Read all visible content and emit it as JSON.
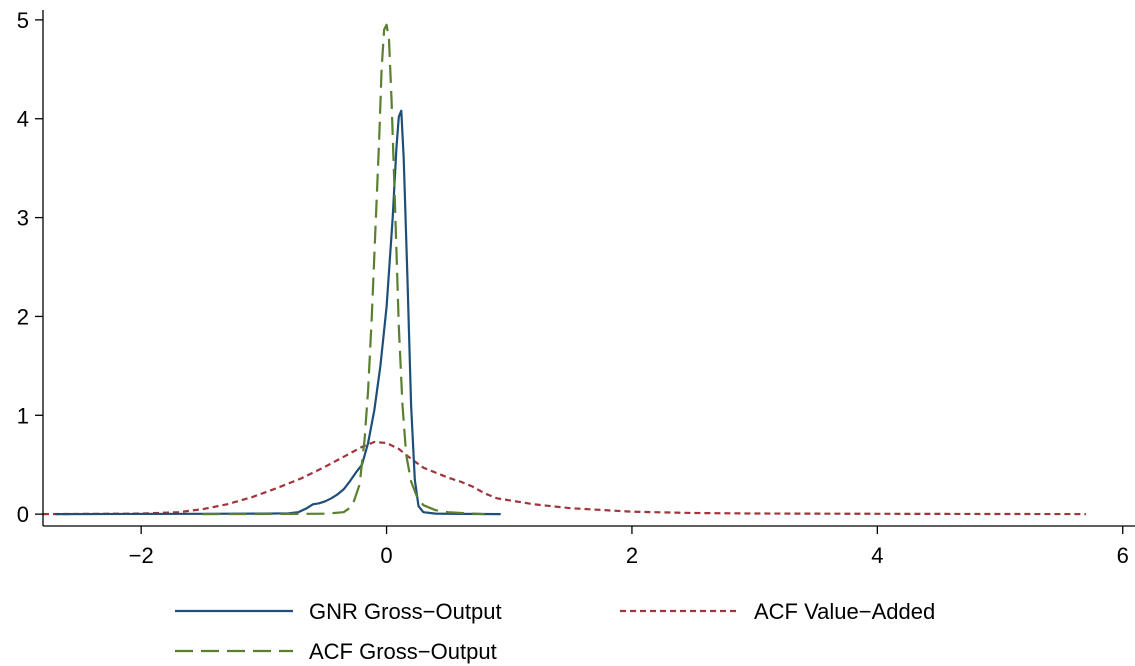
{
  "chart_data": {
    "type": "line",
    "title": "",
    "xlabel": "",
    "ylabel": "",
    "xlim": [
      -2.8,
      6.1
    ],
    "ylim": [
      -0.12,
      5.1
    ],
    "xticks": [
      -2,
      0,
      2,
      4,
      6
    ],
    "yticks": [
      0,
      1,
      2,
      3,
      4,
      5
    ],
    "xtick_labels": [
      "−2",
      "0",
      "2",
      "4",
      "6"
    ],
    "ytick_labels": [
      "0",
      "1",
      "2",
      "3",
      "4",
      "5"
    ],
    "grid": false,
    "legend_position": "bottom",
    "series": [
      {
        "name": "GNR Gross−Output",
        "color": "#1f4e79",
        "dash": "solid",
        "points": [
          [
            -2.7,
            0
          ],
          [
            -1.5,
            0.003
          ],
          [
            -1.0,
            0.005
          ],
          [
            -0.8,
            0.008
          ],
          [
            -0.72,
            0.02
          ],
          [
            -0.65,
            0.06
          ],
          [
            -0.6,
            0.1
          ],
          [
            -0.55,
            0.11
          ],
          [
            -0.5,
            0.13
          ],
          [
            -0.45,
            0.16
          ],
          [
            -0.4,
            0.2
          ],
          [
            -0.35,
            0.25
          ],
          [
            -0.3,
            0.33
          ],
          [
            -0.25,
            0.42
          ],
          [
            -0.2,
            0.5
          ],
          [
            -0.15,
            0.72
          ],
          [
            -0.1,
            1.05
          ],
          [
            -0.05,
            1.5
          ],
          [
            0.0,
            2.1
          ],
          [
            0.05,
            3.0
          ],
          [
            0.08,
            3.7
          ],
          [
            0.1,
            4.02
          ],
          [
            0.12,
            4.08
          ],
          [
            0.14,
            3.6
          ],
          [
            0.17,
            2.4
          ],
          [
            0.2,
            1.1
          ],
          [
            0.23,
            0.35
          ],
          [
            0.26,
            0.08
          ],
          [
            0.3,
            0.02
          ],
          [
            0.4,
            0.005
          ],
          [
            0.6,
            0.002
          ],
          [
            0.93,
            0
          ]
        ]
      },
      {
        "name": "ACF Gross−Output",
        "color": "#5a7f2e",
        "dash": "long",
        "points": [
          [
            -1.5,
            0
          ],
          [
            -0.8,
            0.002
          ],
          [
            -0.5,
            0.004
          ],
          [
            -0.35,
            0.02
          ],
          [
            -0.28,
            0.08
          ],
          [
            -0.22,
            0.3
          ],
          [
            -0.18,
            0.75
          ],
          [
            -0.15,
            1.25
          ],
          [
            -0.12,
            2.0
          ],
          [
            -0.09,
            2.9
          ],
          [
            -0.06,
            3.8
          ],
          [
            -0.04,
            4.5
          ],
          [
            -0.02,
            4.9
          ],
          [
            0.0,
            4.95
          ],
          [
            0.02,
            4.8
          ],
          [
            0.04,
            4.2
          ],
          [
            0.07,
            3.1
          ],
          [
            0.1,
            1.9
          ],
          [
            0.13,
            1.1
          ],
          [
            0.16,
            0.6
          ],
          [
            0.2,
            0.33
          ],
          [
            0.25,
            0.17
          ],
          [
            0.3,
            0.09
          ],
          [
            0.4,
            0.04
          ],
          [
            0.5,
            0.02
          ],
          [
            0.7,
            0.005
          ],
          [
            0.8,
            0
          ]
        ]
      },
      {
        "name": "ACF Value−Added",
        "color": "#a0353b",
        "dash": "short",
        "points": [
          [
            -2.8,
            0
          ],
          [
            -2.0,
            0.005
          ],
          [
            -1.7,
            0.02
          ],
          [
            -1.5,
            0.05
          ],
          [
            -1.3,
            0.1
          ],
          [
            -1.1,
            0.17
          ],
          [
            -0.9,
            0.26
          ],
          [
            -0.7,
            0.36
          ],
          [
            -0.5,
            0.48
          ],
          [
            -0.35,
            0.58
          ],
          [
            -0.2,
            0.68
          ],
          [
            -0.1,
            0.73
          ],
          [
            0.0,
            0.72
          ],
          [
            0.1,
            0.66
          ],
          [
            0.2,
            0.56
          ],
          [
            0.3,
            0.47
          ],
          [
            0.4,
            0.42
          ],
          [
            0.5,
            0.37
          ],
          [
            0.6,
            0.33
          ],
          [
            0.7,
            0.28
          ],
          [
            0.8,
            0.21
          ],
          [
            0.9,
            0.16
          ],
          [
            1.0,
            0.14
          ],
          [
            1.2,
            0.1
          ],
          [
            1.5,
            0.06
          ],
          [
            2.0,
            0.025
          ],
          [
            2.5,
            0.012
          ],
          [
            3.0,
            0.006
          ],
          [
            4.0,
            0.003
          ],
          [
            5.0,
            0.001
          ],
          [
            5.7,
            0
          ]
        ]
      }
    ]
  }
}
